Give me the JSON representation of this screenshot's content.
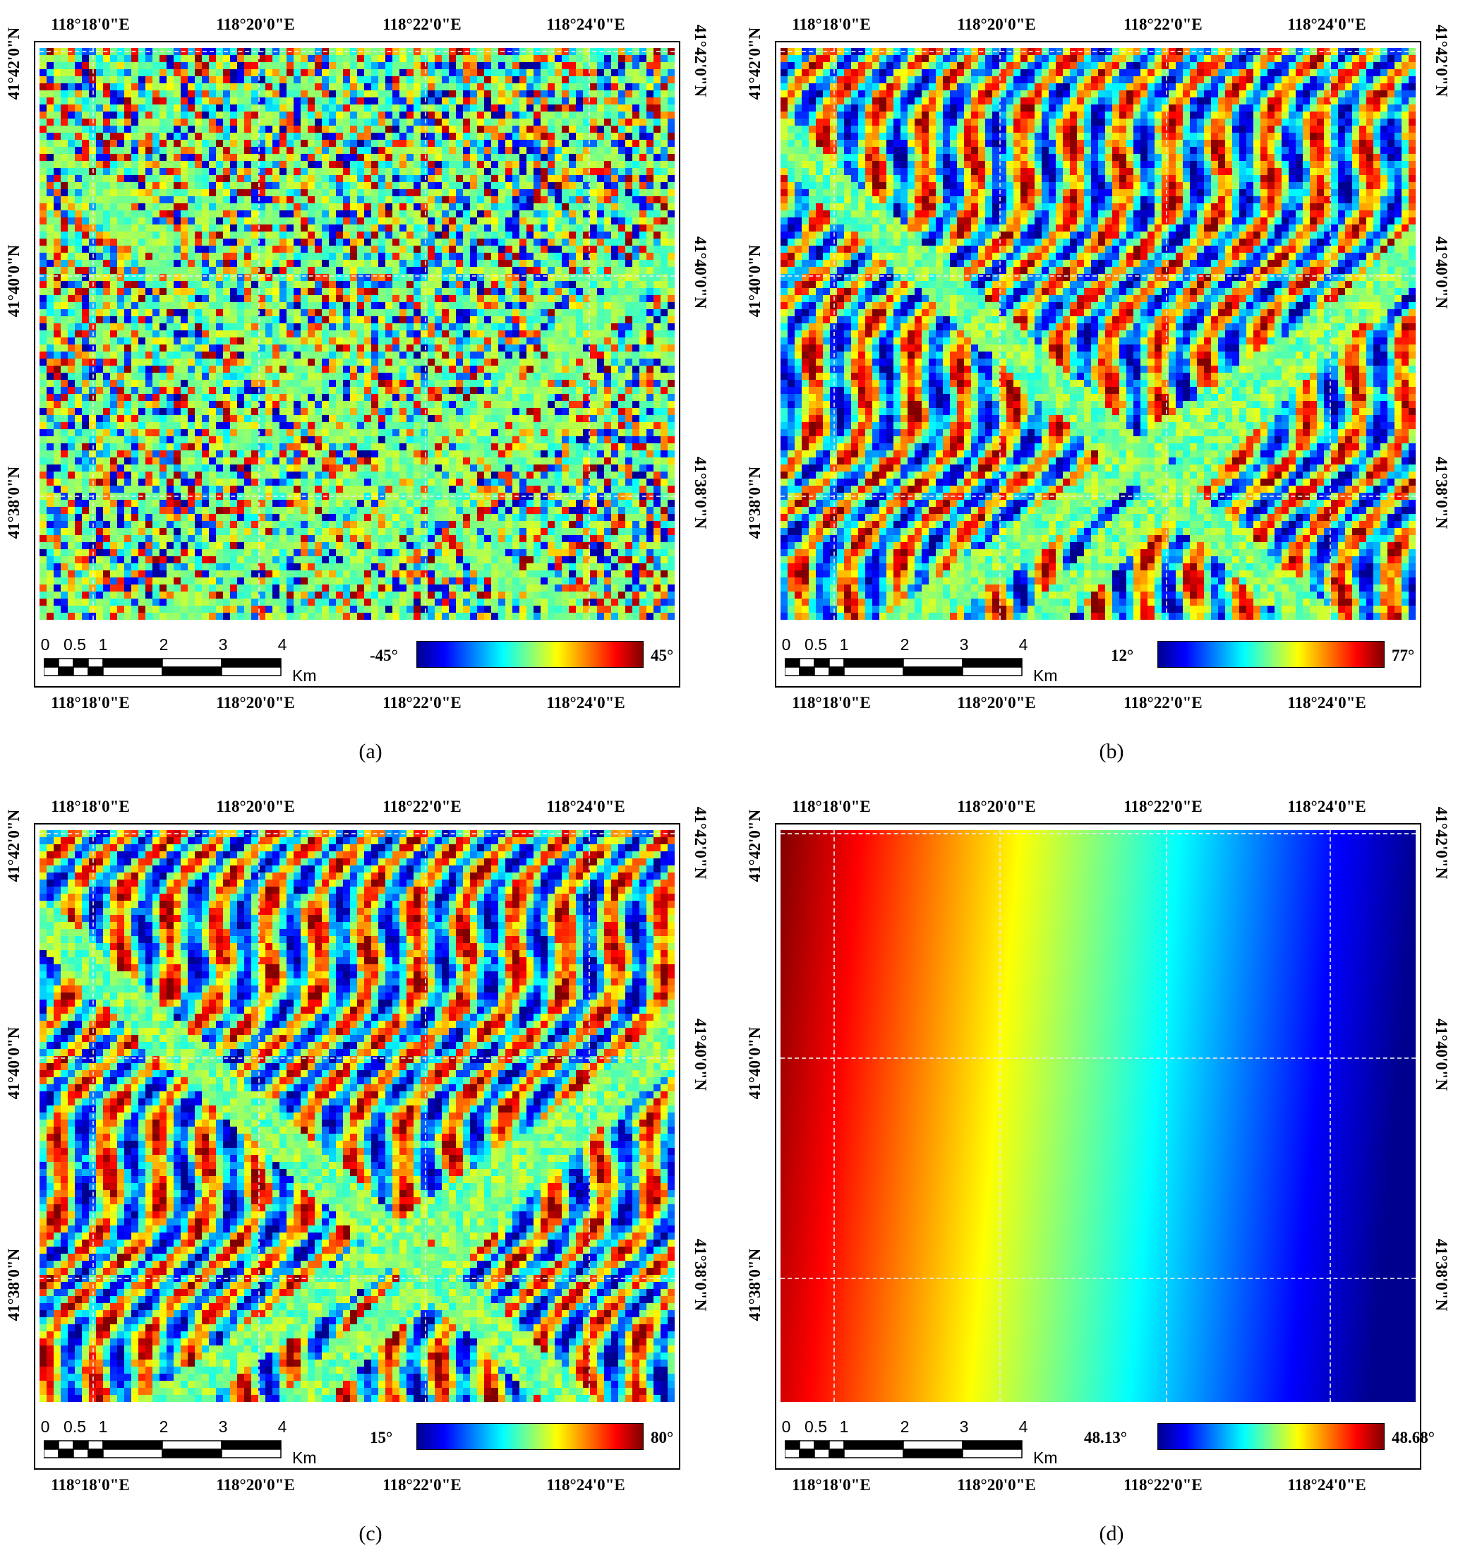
{
  "panels": [
    {
      "id": "a",
      "caption": "(a)",
      "legend_min": "-45°",
      "legend_max": "45°",
      "pattern": "noise"
    },
    {
      "id": "b",
      "caption": "(b)",
      "legend_min": "12°",
      "legend_max": "77°",
      "pattern": "terrain"
    },
    {
      "id": "c",
      "caption": "(c)",
      "legend_min": "15°",
      "legend_max": "80°",
      "pattern": "terrain"
    },
    {
      "id": "d",
      "caption": "(d)",
      "legend_min": "48.13°",
      "legend_max": "48.68°",
      "pattern": "gradient"
    }
  ],
  "longitude_ticks": [
    "118°18'0\"E",
    "118°20'0\"E",
    "118°22'0\"E",
    "118°24'0\"E"
  ],
  "latitude_ticks": [
    "41°42'0\"N",
    "41°40'0\"N",
    "41°38'0\"N"
  ],
  "scale_bar": {
    "labels": [
      "0",
      "0.5",
      "1",
      "2",
      "3",
      "4"
    ],
    "unit": "Km"
  },
  "colormap": [
    "#00008f",
    "#0000ff",
    "#0080ff",
    "#00ffff",
    "#80ff80",
    "#ffff00",
    "#ff8000",
    "#ff0000",
    "#800000"
  ]
}
